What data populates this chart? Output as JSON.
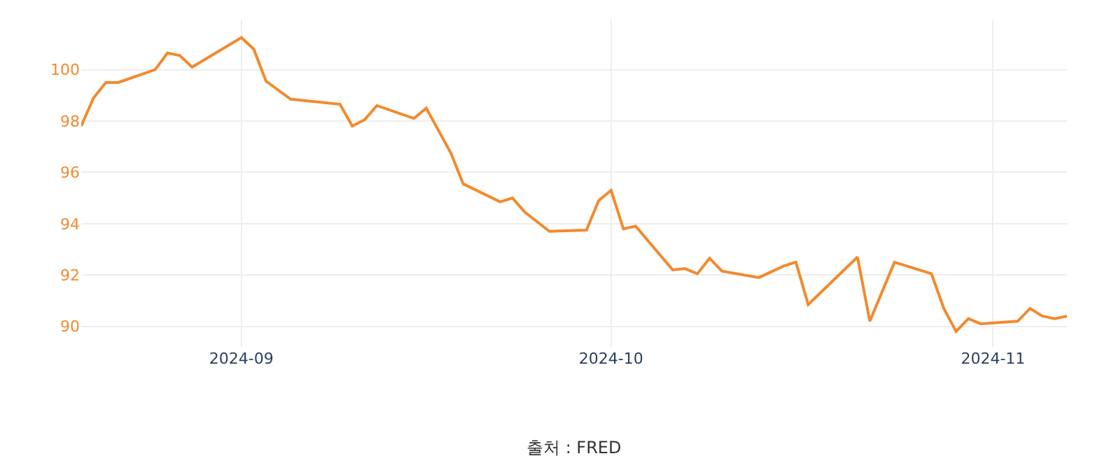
{
  "chart_data": {
    "type": "line",
    "x": [
      "2024-08-19",
      "2024-08-20",
      "2024-08-21",
      "2024-08-22",
      "2024-08-25",
      "2024-08-26",
      "2024-08-27",
      "2024-08-28",
      "2024-09-01",
      "2024-09-02",
      "2024-09-03",
      "2024-09-05",
      "2024-09-09",
      "2024-09-10",
      "2024-09-11",
      "2024-09-12",
      "2024-09-15",
      "2024-09-16",
      "2024-09-18",
      "2024-09-19",
      "2024-09-22",
      "2024-09-23",
      "2024-09-24",
      "2024-09-26",
      "2024-09-29",
      "2024-09-30",
      "2024-10-01",
      "2024-10-02",
      "2024-10-03",
      "2024-10-06",
      "2024-10-07",
      "2024-10-08",
      "2024-10-09",
      "2024-10-10",
      "2024-10-13",
      "2024-10-15",
      "2024-10-16",
      "2024-10-17",
      "2024-10-21",
      "2024-10-22",
      "2024-10-24",
      "2024-10-27",
      "2024-10-28",
      "2024-10-29",
      "2024-10-30",
      "2024-10-31",
      "2024-11-03",
      "2024-11-04",
      "2024-11-05",
      "2024-11-06",
      "2024-11-07"
    ],
    "series": [
      {
        "color": "#f28a2e",
        "values": [
          97.8,
          98.9,
          99.5,
          99.5,
          100.0,
          100.65,
          100.55,
          100.1,
          101.25,
          100.8,
          99.55,
          98.85,
          98.65,
          97.8,
          98.05,
          98.6,
          98.1,
          98.5,
          96.75,
          95.55,
          94.85,
          95.0,
          94.45,
          93.7,
          93.75,
          94.9,
          95.3,
          93.8,
          93.9,
          92.2,
          92.25,
          92.05,
          92.65,
          92.15,
          91.9,
          92.35,
          92.5,
          90.85,
          92.7,
          90.2,
          92.5,
          92.05,
          90.7,
          89.8,
          90.3,
          90.1,
          90.2,
          90.7,
          90.4,
          90.3,
          90.4
        ]
      }
    ],
    "xlim": [
      "2024-08-19",
      "2024-11-07"
    ],
    "xticks": [
      {
        "value": "2024-09-01",
        "label": "2024-09"
      },
      {
        "value": "2024-10-01",
        "label": "2024-10"
      },
      {
        "value": "2024-11-01",
        "label": "2024-11"
      }
    ],
    "ylim": [
      89.2,
      101.95
    ],
    "yticks": [
      90,
      92,
      94,
      96,
      98,
      100
    ],
    "grid": true,
    "line_style": "solid",
    "annotations": [
      "출처 : FRED"
    ]
  }
}
